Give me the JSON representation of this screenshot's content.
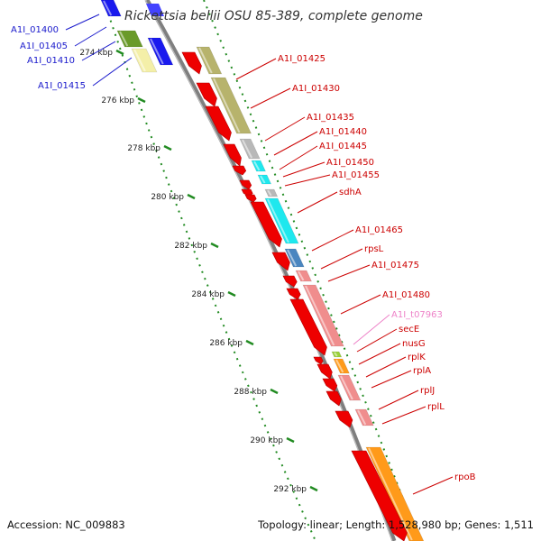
{
  "title": "Rickettsia bellii OSU 85-389, complete genome",
  "accession": "Accession: NC_009883",
  "topology": "Topology: linear; Length: 1,528,980 bp; Genes: 1,511",
  "colors": {
    "backbone": "#7f7f7f",
    "tick": "#228b22",
    "left_label": "#1a1acc",
    "right_label": "#cc0000",
    "trna_label": "#ee82c8",
    "cds_red": "#ee0000",
    "olive": "#b7b36c",
    "grey": "#b8b8b8",
    "cyan": "#1ee8ee",
    "steel": "#4a86c0",
    "pink": "#f08d8d",
    "orange": "#ff9a1a",
    "lime": "#9ad03a",
    "blue": "#1a1aee",
    "green": "#6a9a2a",
    "pale_yellow": "#f4efa8"
  },
  "kbp_ticks": [
    "274 kbp",
    "276 kbp",
    "278 kbp",
    "280 kbp",
    "282 kbp",
    "284 kbp",
    "286 kbp",
    "288 kbp",
    "290 kbp",
    "292 kbp"
  ],
  "left_genes": [
    "A1I_01400",
    "A1I_01405",
    "A1I_01410",
    "A1I_01415"
  ],
  "right_genes": [
    {
      "label": "A1I_01425",
      "kind": "cds"
    },
    {
      "label": "A1I_01430",
      "kind": "cds"
    },
    {
      "label": "A1I_01435",
      "kind": "cds"
    },
    {
      "label": "A1I_01440",
      "kind": "cds"
    },
    {
      "label": "A1I_01445",
      "kind": "cds"
    },
    {
      "label": "A1I_01450",
      "kind": "cds"
    },
    {
      "label": "A1I_01455",
      "kind": "cds"
    },
    {
      "label": "sdhA",
      "kind": "cds"
    },
    {
      "label": "A1I_01465",
      "kind": "cds"
    },
    {
      "label": "rpsL",
      "kind": "cds"
    },
    {
      "label": "A1I_01475",
      "kind": "cds"
    },
    {
      "label": "A1I_01480",
      "kind": "cds"
    },
    {
      "label": "A1I_t07963",
      "kind": "trna"
    },
    {
      "label": "secE",
      "kind": "cds"
    },
    {
      "label": "nusG",
      "kind": "cds"
    },
    {
      "label": "rplK",
      "kind": "cds"
    },
    {
      "label": "rplA",
      "kind": "cds"
    },
    {
      "label": "rplJ",
      "kind": "cds"
    },
    {
      "label": "rplL",
      "kind": "cds"
    },
    {
      "label": "rpoB",
      "kind": "cds"
    }
  ]
}
